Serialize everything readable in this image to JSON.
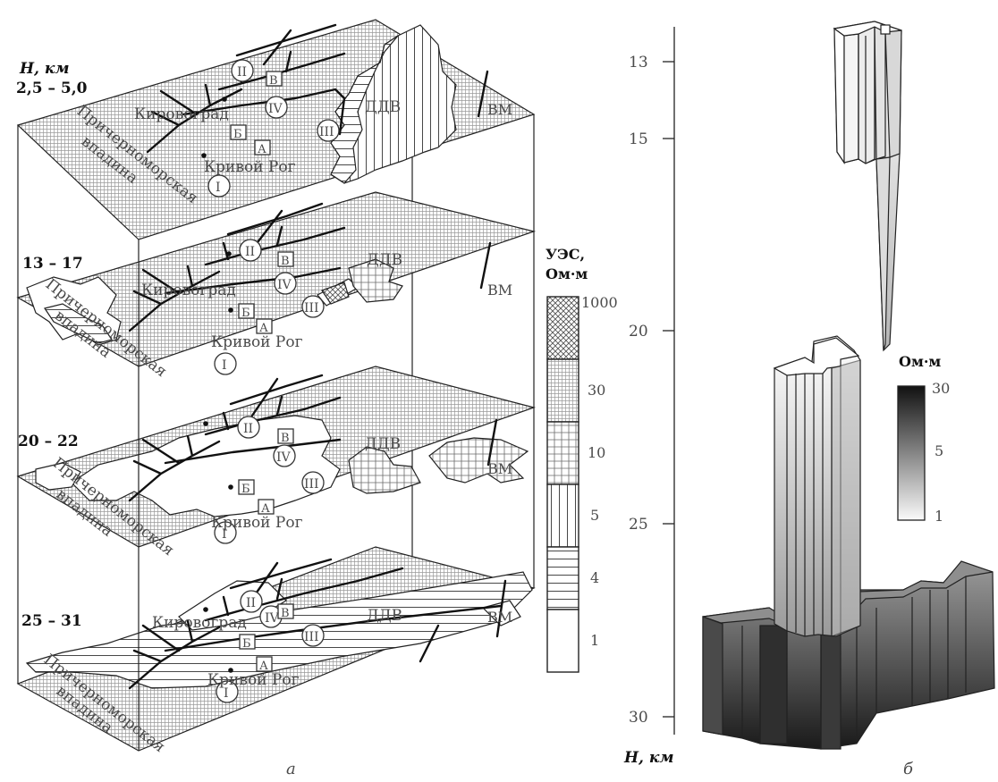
{
  "panel_a": {
    "depth_heading": "H, км",
    "layers": [
      {
        "depth": "2,5 – 5,0"
      },
      {
        "depth": "13 – 17"
      },
      {
        "depth": "20 – 22"
      },
      {
        "depth": "25 – 31"
      }
    ],
    "map_labels": {
      "kirovograd": "Кировоград",
      "krivoy_rog": "Кривой Рог",
      "ddv": "ДДВ",
      "vm": "ВМ",
      "depression_line1": "Причерноморская",
      "depression_line2": "впадина",
      "roman": [
        "I",
        "II",
        "III",
        "IV"
      ],
      "letters": [
        "А",
        "Б",
        "В"
      ]
    },
    "caption": "а"
  },
  "legend_a": {
    "title_line1": "УЭС,",
    "title_line2": "Ом·м",
    "items": [
      "1000",
      "30",
      "10",
      "5",
      "4",
      "1"
    ]
  },
  "panel_b": {
    "axis_ticks": [
      "13",
      "15",
      "20",
      "25",
      "30"
    ],
    "axis_label": "H, км",
    "colorbar_title": "Ом·м",
    "colorbar_ticks": [
      "30",
      "5",
      "1"
    ],
    "caption": "б"
  }
}
